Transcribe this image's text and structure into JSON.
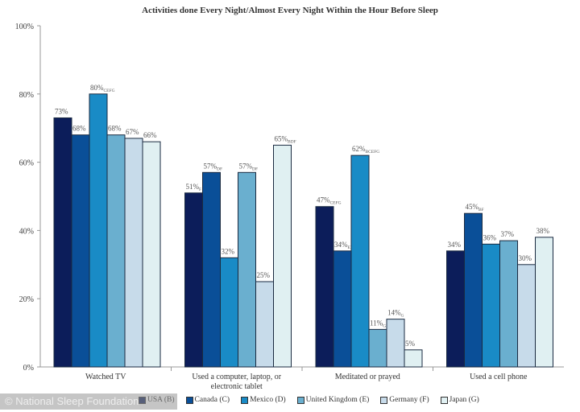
{
  "chart_data": {
    "type": "bar",
    "title": "Activities done Every Night/Almost Every Night Within the Hour Before Sleep",
    "categories": [
      "Watched TV",
      "Used a computer, laptop, or electronic tablet",
      "Meditated or prayed",
      "Used a cell phone"
    ],
    "ylim": [
      0,
      100
    ],
    "yticks": [
      "0%",
      "20%",
      "40%",
      "60%",
      "80%",
      "100%"
    ],
    "grid": false,
    "legend_placement": "bottom",
    "series": [
      {
        "name": "USA (B)",
        "color": "#0c1d5a",
        "values": [
          73,
          51,
          47,
          34
        ],
        "labels": [
          "73%",
          "51%",
          "47%",
          "34%"
        ],
        "subs": [
          "",
          "F",
          "CEFG",
          ""
        ]
      },
      {
        "name": "Canada (C)",
        "color": "#0a4f98",
        "values": [
          68,
          57,
          34,
          45
        ],
        "labels": [
          "68%",
          "57%",
          "34%",
          "45%"
        ],
        "subs": [
          "",
          "DF",
          "EFG",
          "BF"
        ]
      },
      {
        "name": "Mexico (D)",
        "color": "#198bc6",
        "values": [
          80,
          32,
          62,
          36
        ],
        "labels": [
          "80%",
          "32%",
          "62%",
          "36%"
        ],
        "subs": [
          "CEFG",
          "",
          "BCEFG",
          ""
        ]
      },
      {
        "name": "United Kingdom (E)",
        "color": "#6aafcf",
        "values": [
          68,
          57,
          11,
          37
        ],
        "labels": [
          "68%",
          "57%",
          "11%",
          "37%"
        ],
        "subs": [
          "",
          "DF",
          "G",
          ""
        ]
      },
      {
        "name": "Germany (F)",
        "color": "#c7dbea",
        "values": [
          67,
          25,
          14,
          30
        ],
        "labels": [
          "67%",
          "25%",
          "14%",
          "30%"
        ],
        "subs": [
          "",
          "",
          "G",
          ""
        ]
      },
      {
        "name": "Japan (G)",
        "color": "#e0f0f2",
        "values": [
          66,
          65,
          5,
          38
        ],
        "labels": [
          "66%",
          "65%",
          "5%",
          "38%"
        ],
        "subs": [
          "",
          "BDF",
          "",
          ""
        ]
      }
    ]
  },
  "watermark": "© National Sleep Foundation"
}
